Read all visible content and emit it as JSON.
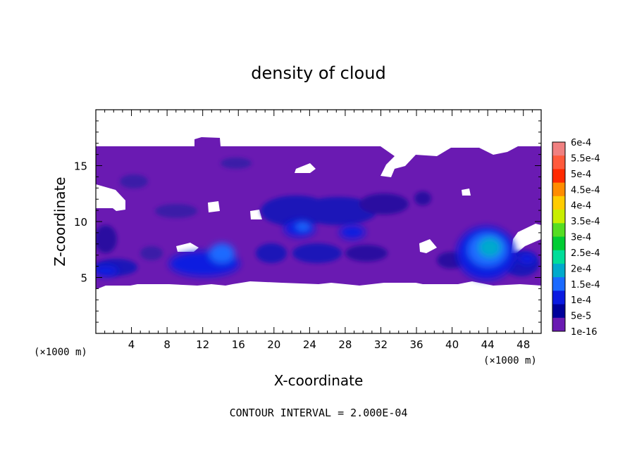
{
  "chart_data": {
    "type": "heatmap",
    "title": "density of cloud",
    "xlabel": "X-coordinate",
    "ylabel": "Z-coordinate",
    "x_unit_left": "(×1000 m)",
    "x_unit_right": "(×1000 m)",
    "xlim": [
      0,
      50
    ],
    "ylim": [
      0,
      20
    ],
    "x_ticks": [
      4,
      8,
      12,
      16,
      20,
      24,
      28,
      32,
      36,
      40,
      44,
      48
    ],
    "x_tick_labels": [
      "4",
      "8",
      "12",
      "16",
      "20",
      "24",
      "28",
      "32",
      "36",
      "40",
      "44",
      "48"
    ],
    "y_ticks": [
      5,
      10,
      15
    ],
    "y_tick_labels": [
      "5",
      "10",
      "15"
    ],
    "footer": "CONTOUR INTERVAL = 2.000E-04",
    "grid": false,
    "colorbar": {
      "position": "right",
      "labels": [
        "6e-4",
        "5.5e-4",
        "5e-4",
        "4.5e-4",
        "4e-4",
        "3.5e-4",
        "3e-4",
        "2.5e-4",
        "2e-4",
        "1.5e-4",
        "1e-4",
        "5e-5",
        "1e-16"
      ],
      "colors": [
        "#f08080",
        "#ff5a3c",
        "#ff2a00",
        "#ff8c00",
        "#ffcc00",
        "#c8ee00",
        "#55dd22",
        "#00cc33",
        "#00dd99",
        "#00aacc",
        "#1a6aff",
        "#0a1ae0",
        "#00009a",
        "#6a1ab2"
      ]
    },
    "field": {
      "background_level_color": "#6a1ab2",
      "cloud_layer_z_range": [
        4.3,
        16.7
      ],
      "max_region": {
        "x": 43.5,
        "z": 7.2,
        "level": "1.5e-4"
      }
    }
  }
}
